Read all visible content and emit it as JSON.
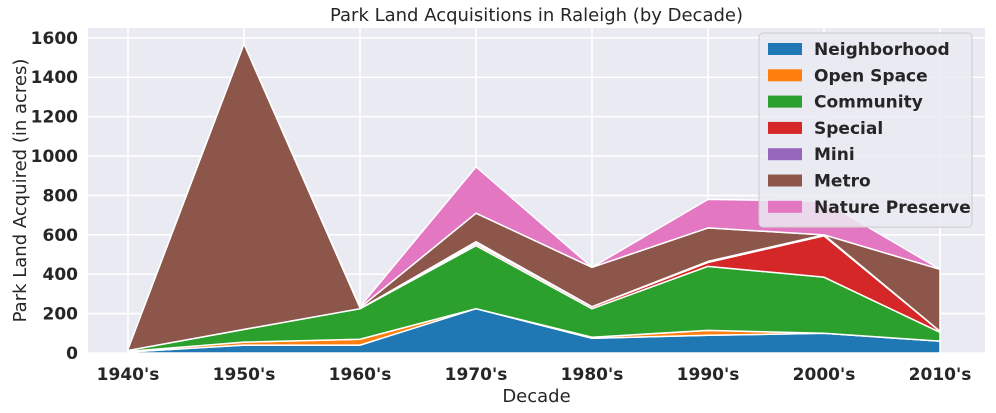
{
  "chart_data": {
    "type": "area",
    "stacked": true,
    "title": "Park Land Acquisitions in Raleigh (by Decade)",
    "xlabel": "Decade",
    "ylabel": "Park Land Acquired (in acres)",
    "categories": [
      "1940's",
      "1950's",
      "1960's",
      "1970's",
      "1980's",
      "1990's",
      "2000's",
      "2010's"
    ],
    "ylim": [
      0,
      1650
    ],
    "yticks": [
      0,
      200,
      400,
      600,
      800,
      1000,
      1200,
      1400,
      1600
    ],
    "grid": true,
    "legend_position": "top-right",
    "series": [
      {
        "name": "Neighborhood",
        "color": "#1f77b4",
        "values": [
          5,
          40,
          40,
          225,
          75,
          90,
          100,
          60
        ]
      },
      {
        "name": "Open Space",
        "color": "#ff7f0e",
        "values": [
          3,
          15,
          30,
          0,
          5,
          25,
          0,
          0
        ]
      },
      {
        "name": "Community",
        "color": "#2ca02c",
        "values": [
          5,
          65,
          155,
          320,
          145,
          325,
          285,
          45
        ]
      },
      {
        "name": "Special",
        "color": "#d62728",
        "values": [
          0,
          0,
          0,
          10,
          10,
          20,
          210,
          5
        ]
      },
      {
        "name": "Mini",
        "color": "#9467bd",
        "values": [
          0,
          0,
          0,
          10,
          0,
          5,
          5,
          0
        ]
      },
      {
        "name": "Metro",
        "color": "#8c564b",
        "values": [
          7,
          1450,
          5,
          145,
          200,
          170,
          0,
          315
        ]
      },
      {
        "name": "Nature Preserve",
        "color": "#e377c2",
        "values": [
          0,
          0,
          5,
          235,
          0,
          145,
          170,
          0
        ]
      }
    ]
  }
}
